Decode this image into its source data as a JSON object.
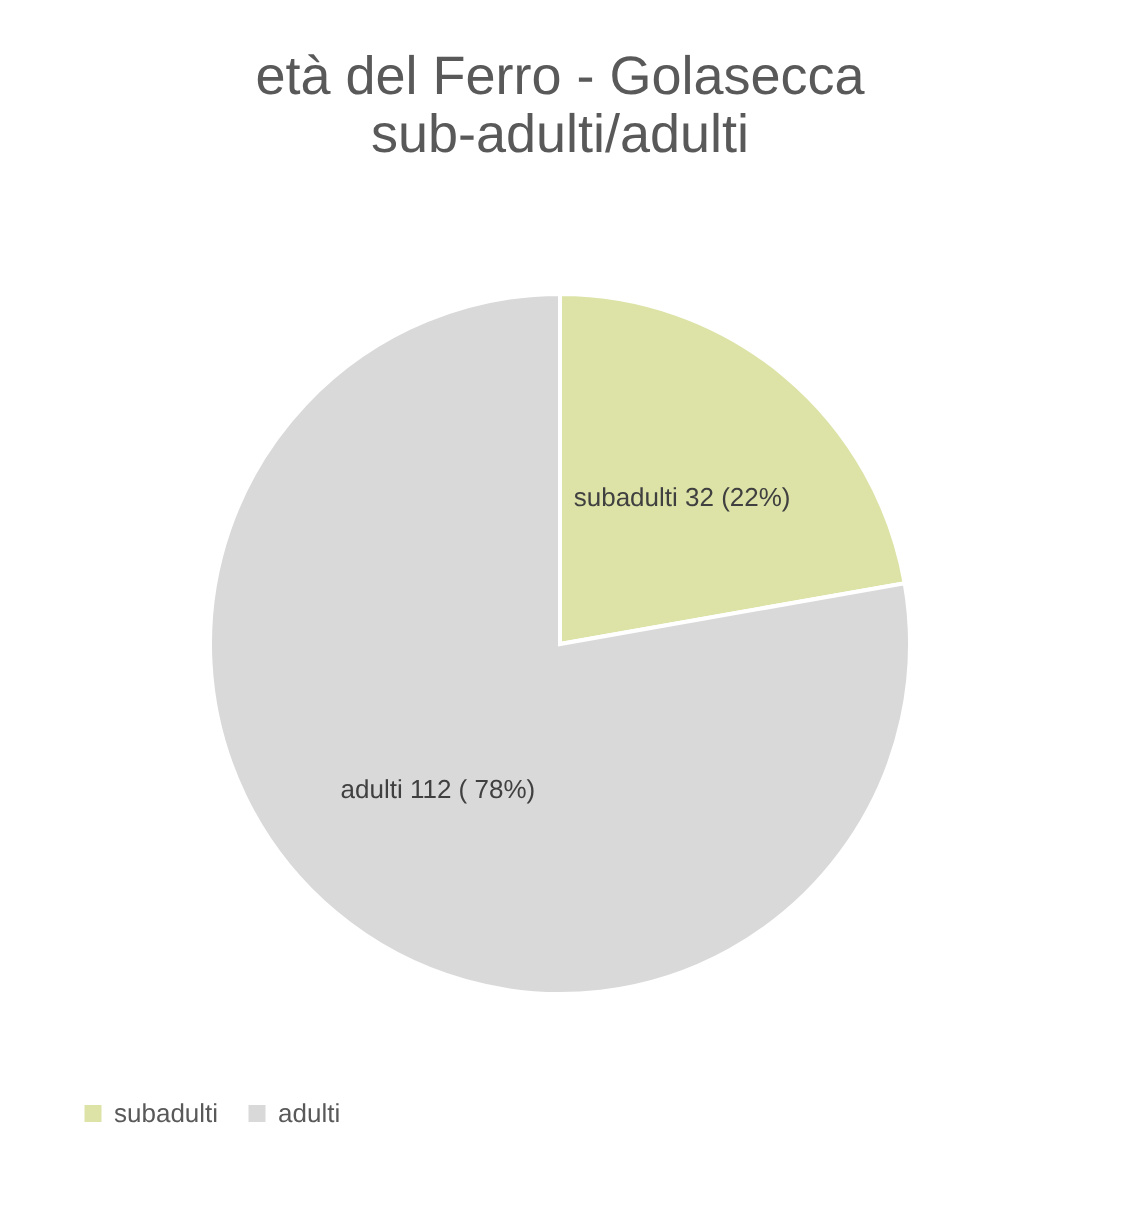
{
  "chart_data": {
    "type": "pie",
    "title": "età del Ferro - Golasecca\nsub-adulti/adulti",
    "categories": [
      "subadulti",
      "adulti"
    ],
    "values": [
      32,
      112
    ],
    "colors": [
      "#dde3a6",
      "#d9d9d9"
    ],
    "value_labels": [
      "subadulti  32 (22%)",
      "adulti 112  ( 78%)"
    ],
    "legend": "bottom"
  }
}
